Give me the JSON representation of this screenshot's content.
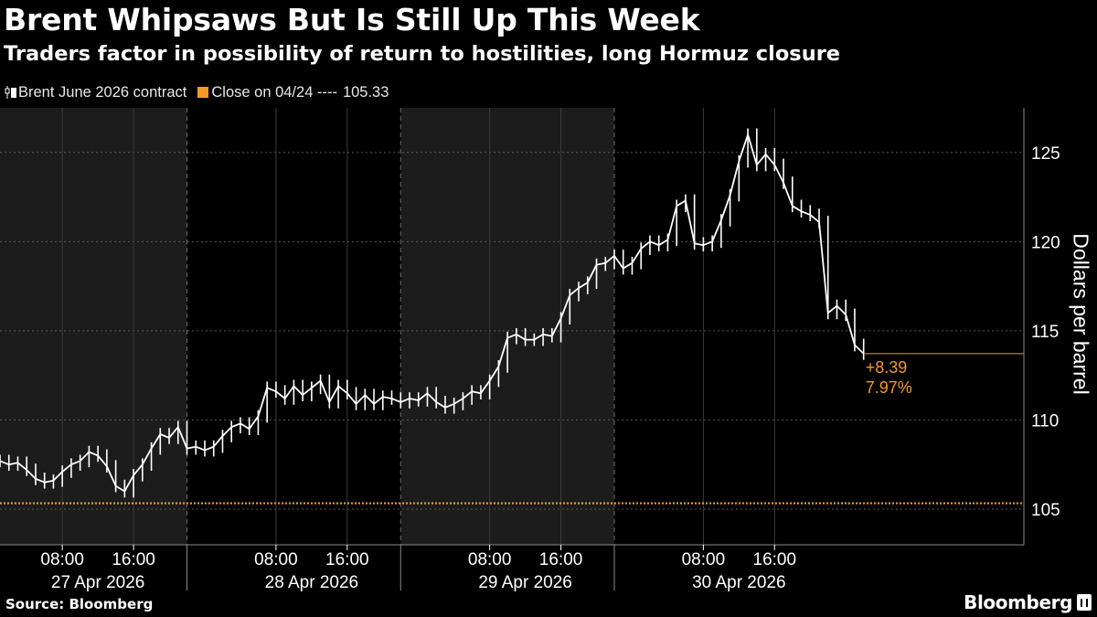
{
  "title": "Brent Whipsaws But Is Still Up This Week",
  "subtitle": "Traders factor in possibility of return to hostilities, long Hormuz closure",
  "legend": {
    "series_label": "Brent June 2026 contract",
    "close_label": "Close on 04/24 ---- ",
    "close_value": "105.33",
    "series_color": "#ffffff",
    "close_color": "#f39a2a"
  },
  "source": "Source: Bloomberg",
  "brand": "Bloomberg",
  "chart_data": {
    "type": "candlestick",
    "ylabel": "Dollars per barrel",
    "ylim": [
      103,
      127.5
    ],
    "yticks": [
      105,
      110,
      115,
      120,
      125
    ],
    "x_unit": "hours since 27 Apr 2026 00:00",
    "xlim": [
      1,
      116
    ],
    "xticks": [
      {
        "x": 8,
        "label": "08:00",
        "date": "27 Apr 2026"
      },
      {
        "x": 16,
        "label": "16:00",
        "date": ""
      },
      {
        "x": 32,
        "label": "08:00",
        "date": "28 Apr 2026"
      },
      {
        "x": 40,
        "label": "16:00",
        "date": ""
      },
      {
        "x": 56,
        "label": "08:00",
        "date": "29 Apr 2026"
      },
      {
        "x": 64,
        "label": "16:00",
        "date": ""
      },
      {
        "x": 80,
        "label": "08:00",
        "date": "30 Apr 2026"
      },
      {
        "x": 88,
        "label": "16:00",
        "date": ""
      }
    ],
    "reference_line": {
      "label": "Close on 04/24",
      "value": 105.33
    },
    "last_value_line": 113.72,
    "annotation": {
      "change": "+8.39",
      "percent": "7.97%"
    },
    "series": [
      {
        "name": "Brent June 2026 contract",
        "points": [
          [
            1,
            107.7
          ],
          [
            2,
            107.5
          ],
          [
            3,
            107.6
          ],
          [
            4,
            107.2
          ],
          [
            5,
            106.7
          ],
          [
            6,
            106.5
          ],
          [
            7,
            106.6
          ],
          [
            8,
            107.1
          ],
          [
            9,
            107.5
          ],
          [
            10,
            107.7
          ],
          [
            11,
            108.2
          ],
          [
            12,
            108.0
          ],
          [
            13,
            107.4
          ],
          [
            14,
            106.3
          ],
          [
            15,
            106.0
          ],
          [
            16,
            106.9
          ],
          [
            17,
            107.5
          ],
          [
            18,
            108.4
          ],
          [
            19,
            109.2
          ],
          [
            20,
            109.0
          ],
          [
            21,
            109.6
          ],
          [
            22,
            108.4
          ],
          [
            23,
            108.5
          ],
          [
            24,
            108.3
          ],
          [
            25,
            108.5
          ],
          [
            26,
            109.1
          ],
          [
            27,
            109.6
          ],
          [
            28,
            109.8
          ],
          [
            29,
            109.5
          ],
          [
            30,
            110.2
          ],
          [
            31,
            111.8
          ],
          [
            32,
            111.6
          ],
          [
            33,
            111.2
          ],
          [
            34,
            111.9
          ],
          [
            35,
            111.4
          ],
          [
            36,
            111.8
          ],
          [
            37,
            112.2
          ],
          [
            38,
            111.0
          ],
          [
            39,
            111.9
          ],
          [
            40,
            111.5
          ],
          [
            41,
            110.9
          ],
          [
            42,
            111.4
          ],
          [
            43,
            110.9
          ],
          [
            44,
            111.3
          ],
          [
            45,
            111.2
          ],
          [
            46,
            111.0
          ],
          [
            47,
            111.2
          ],
          [
            48,
            111.1
          ],
          [
            49,
            111.5
          ],
          [
            50,
            111.0
          ],
          [
            51,
            110.7
          ],
          [
            52,
            110.9
          ],
          [
            53,
            111.2
          ],
          [
            54,
            111.6
          ],
          [
            55,
            111.5
          ],
          [
            56,
            112.2
          ],
          [
            57,
            113.0
          ],
          [
            58,
            114.6
          ],
          [
            59,
            114.8
          ],
          [
            60,
            114.5
          ],
          [
            61,
            114.5
          ],
          [
            62,
            114.8
          ],
          [
            63,
            114.7
          ],
          [
            64,
            115.7
          ],
          [
            65,
            117.0
          ],
          [
            66,
            117.4
          ],
          [
            67,
            117.7
          ],
          [
            68,
            118.7
          ],
          [
            69,
            118.8
          ],
          [
            70,
            119.2
          ],
          [
            71,
            118.5
          ],
          [
            72,
            118.8
          ],
          [
            73,
            119.6
          ],
          [
            74,
            120.0
          ],
          [
            75,
            119.8
          ],
          [
            76,
            120.1
          ],
          [
            77,
            122.0
          ],
          [
            78,
            122.3
          ],
          [
            79,
            119.9
          ],
          [
            80,
            119.8
          ],
          [
            81,
            120.0
          ],
          [
            82,
            121.2
          ],
          [
            83,
            122.6
          ],
          [
            84,
            124.5
          ],
          [
            85,
            126.0
          ],
          [
            86,
            124.3
          ],
          [
            87,
            124.9
          ],
          [
            88,
            124.3
          ],
          [
            89,
            123.3
          ],
          [
            90,
            122.0
          ],
          [
            91,
            121.7
          ],
          [
            92,
            121.5
          ],
          [
            93,
            121.1
          ],
          [
            94,
            116.0
          ],
          [
            95,
            116.4
          ],
          [
            96,
            115.9
          ],
          [
            97,
            114.2
          ],
          [
            98,
            113.72
          ]
        ]
      }
    ]
  }
}
